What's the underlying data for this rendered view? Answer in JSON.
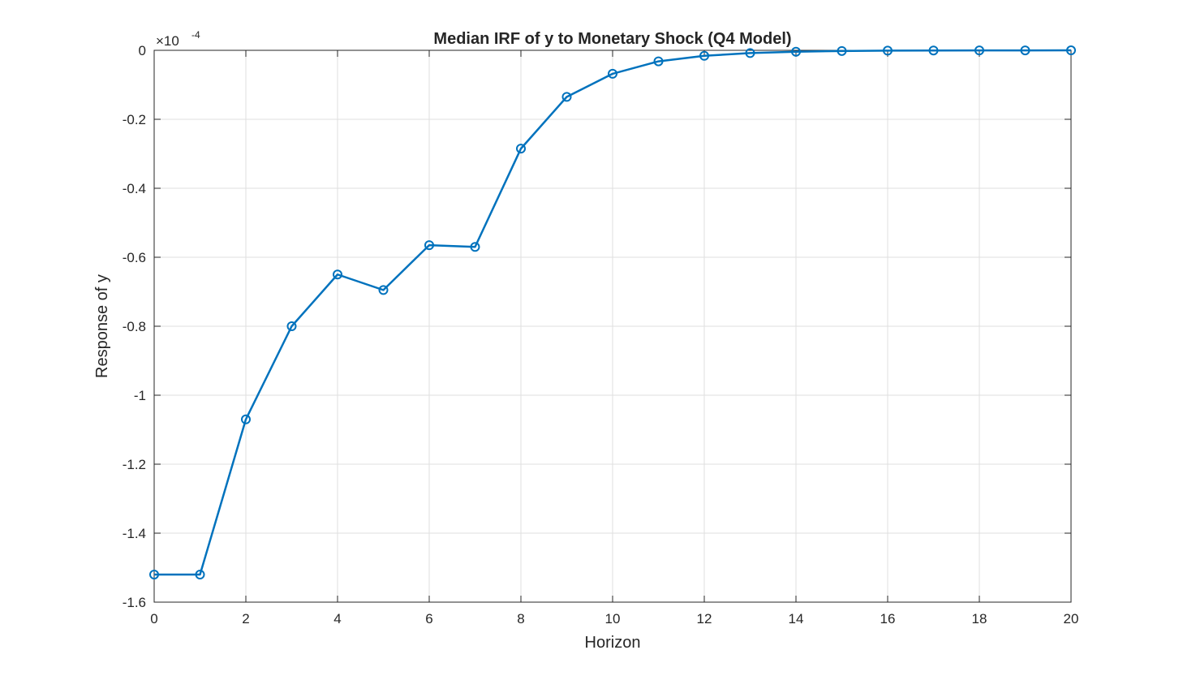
{
  "chart_data": {
    "type": "line",
    "title": "Median IRF of y to Monetary Shock (Q4 Model)",
    "xlabel": "Horizon",
    "ylabel": "Response of y",
    "y_exponent_base": "×10",
    "y_exponent_power": "-4",
    "xlim": [
      0,
      20
    ],
    "ylim": [
      -1.6,
      0
    ],
    "x_ticks": [
      0,
      2,
      4,
      6,
      8,
      10,
      12,
      14,
      16,
      18,
      20
    ],
    "x_tick_labels": [
      "0",
      "2",
      "4",
      "6",
      "8",
      "10",
      "12",
      "14",
      "16",
      "18",
      "20"
    ],
    "y_ticks": [
      -1.6,
      -1.4,
      -1.2,
      -1,
      -0.8,
      -0.6,
      -0.4,
      -0.2,
      0
    ],
    "y_tick_labels": [
      "-1.6",
      "-1.4",
      "-1.2",
      "-1",
      "-0.8",
      "-0.6",
      "-0.4",
      "-0.2",
      "0"
    ],
    "grid": true,
    "marker": "circle",
    "color": "#0072BD",
    "series": [
      {
        "x": [
          0,
          1,
          2,
          3,
          4,
          5,
          6,
          7,
          8,
          9,
          10,
          11,
          12,
          13,
          14,
          15,
          16,
          17,
          18,
          19,
          20
        ],
        "y": [
          -1.52,
          -1.52,
          -1.07,
          -0.8,
          -0.65,
          -0.695,
          -0.565,
          -0.57,
          -0.285,
          -0.135,
          -0.068,
          -0.032,
          -0.016,
          -0.008,
          -0.004,
          -0.002,
          -0.001,
          -0.0005,
          -0.0003,
          -0.0002,
          -0.0001
        ]
      }
    ]
  }
}
